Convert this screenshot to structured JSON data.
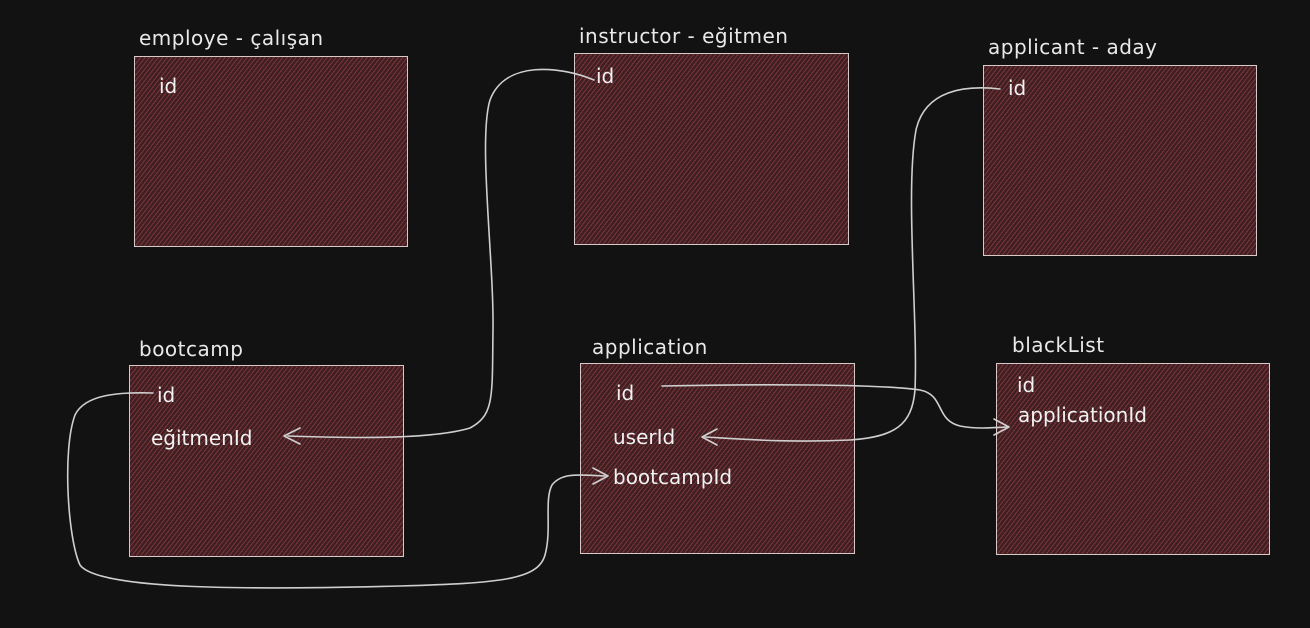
{
  "entities": {
    "employee": {
      "title": "employe - çalışan",
      "fields": [
        "id"
      ]
    },
    "instructor": {
      "title": "instructor - eğitmen",
      "fields": [
        "id"
      ]
    },
    "applicant": {
      "title": "applicant - aday",
      "fields": [
        "id"
      ]
    },
    "bootcamp": {
      "title": "bootcamp",
      "fields": [
        "id",
        "eğitmenId"
      ]
    },
    "application": {
      "title": "application",
      "fields": [
        "id",
        "userId",
        "bootcampId"
      ]
    },
    "blacklist": {
      "title": "blackList",
      "fields": [
        "id",
        "applicationId"
      ]
    }
  },
  "colors": {
    "background": "#121212",
    "box_fill": "#3f1f22",
    "hatch": "#a8484e",
    "stroke": "#d8c9c9",
    "text": "#f1f1f1",
    "connector": "#cfcfcf"
  }
}
